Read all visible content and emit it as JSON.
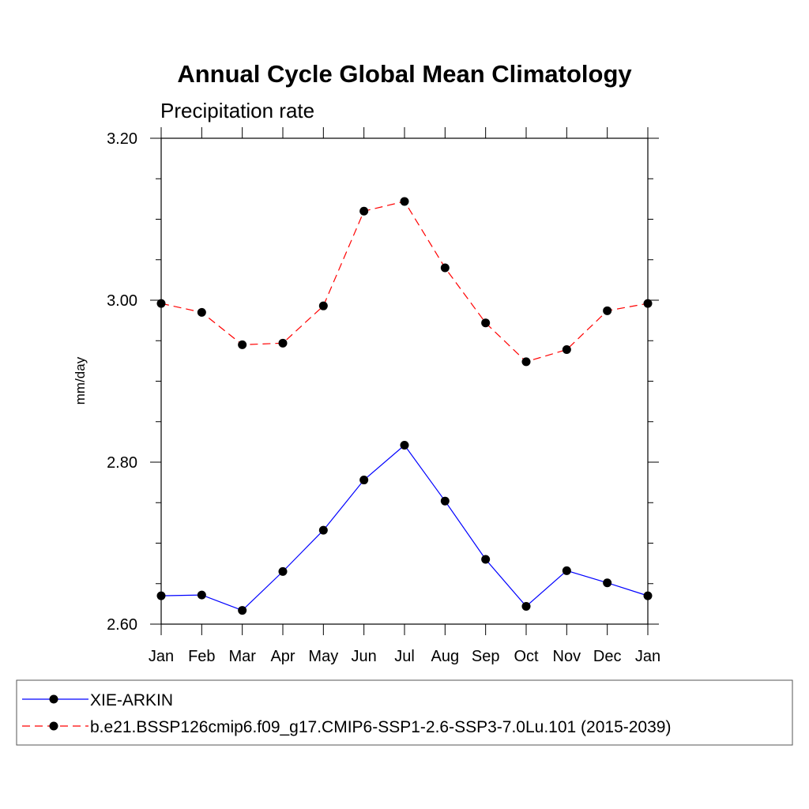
{
  "chart_data": {
    "type": "line",
    "title": "Annual Cycle Global Mean Climatology",
    "subtitle": "Precipitation rate",
    "ylabel": "mm/day",
    "xlabel": "",
    "ylim": [
      2.6,
      3.2
    ],
    "yticks": [
      "2.60",
      "2.80",
      "3.00",
      "3.20"
    ],
    "ytick_values": [
      2.6,
      2.8,
      3.0,
      3.2
    ],
    "yminor_step": 0.05,
    "categories": [
      "Jan",
      "Feb",
      "Mar",
      "Apr",
      "May",
      "Jun",
      "Jul",
      "Aug",
      "Sep",
      "Oct",
      "Nov",
      "Dec",
      "Jan"
    ],
    "grid": false,
    "legend_position": "bottom",
    "series": [
      {
        "name": "XIE-ARKIN",
        "color": "#0000ff",
        "dash": "solid",
        "marker": "filled-circle",
        "values": [
          2.635,
          2.636,
          2.617,
          2.665,
          2.716,
          2.778,
          2.821,
          2.752,
          2.68,
          2.622,
          2.666,
          2.651,
          2.635
        ]
      },
      {
        "name": "b.e21.BSSP126cmip6.f09_g17.CMIP6-SSP1-2.6-SSP3-7.0Lu.101 (2015-2039)",
        "color": "#ff0000",
        "dash": "dashed",
        "marker": "filled-circle",
        "values": [
          2.996,
          2.985,
          2.945,
          2.947,
          2.993,
          3.11,
          3.122,
          3.04,
          2.972,
          2.924,
          2.939,
          2.987,
          2.996
        ]
      }
    ]
  }
}
